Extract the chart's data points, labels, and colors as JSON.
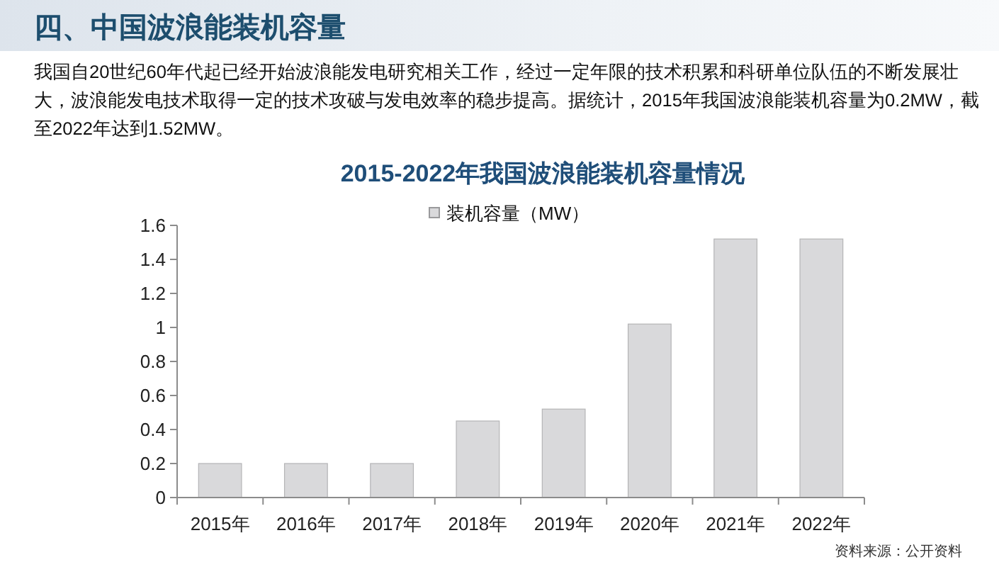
{
  "chart_data": {
    "type": "bar",
    "title": "2015-2022年我国波浪能装机容量情况",
    "categories": [
      "2015年",
      "2016年",
      "2017年",
      "2018年",
      "2019年",
      "2020年",
      "2021年",
      "2022年"
    ],
    "series": [
      {
        "name": "装机容量（MW）",
        "color": "#d9d9db",
        "values": [
          0.2,
          0.2,
          0.2,
          0.45,
          0.52,
          1.02,
          1.52,
          1.52
        ]
      }
    ],
    "ylim": [
      0,
      1.6
    ],
    "yticks": [
      0,
      0.2,
      0.4,
      0.6,
      0.8,
      1,
      1.2,
      1.4,
      1.6
    ],
    "grid": false,
    "legend": "top",
    "annotations": [
      "四、中国波浪能装机容量",
      "我国自20世纪60年代起已经开始波浪能发电研究相关工作，经过一定年限的技术积累和科研单位队伍的不断发展壮大，波浪能发电技术取得一定的技术攻破与发电效率的稳步提高。据统计，2015年我国波浪能装机容量为0.2MW，截至2022年达到1.52MW。",
      "资料来源：公开资料"
    ]
  }
}
